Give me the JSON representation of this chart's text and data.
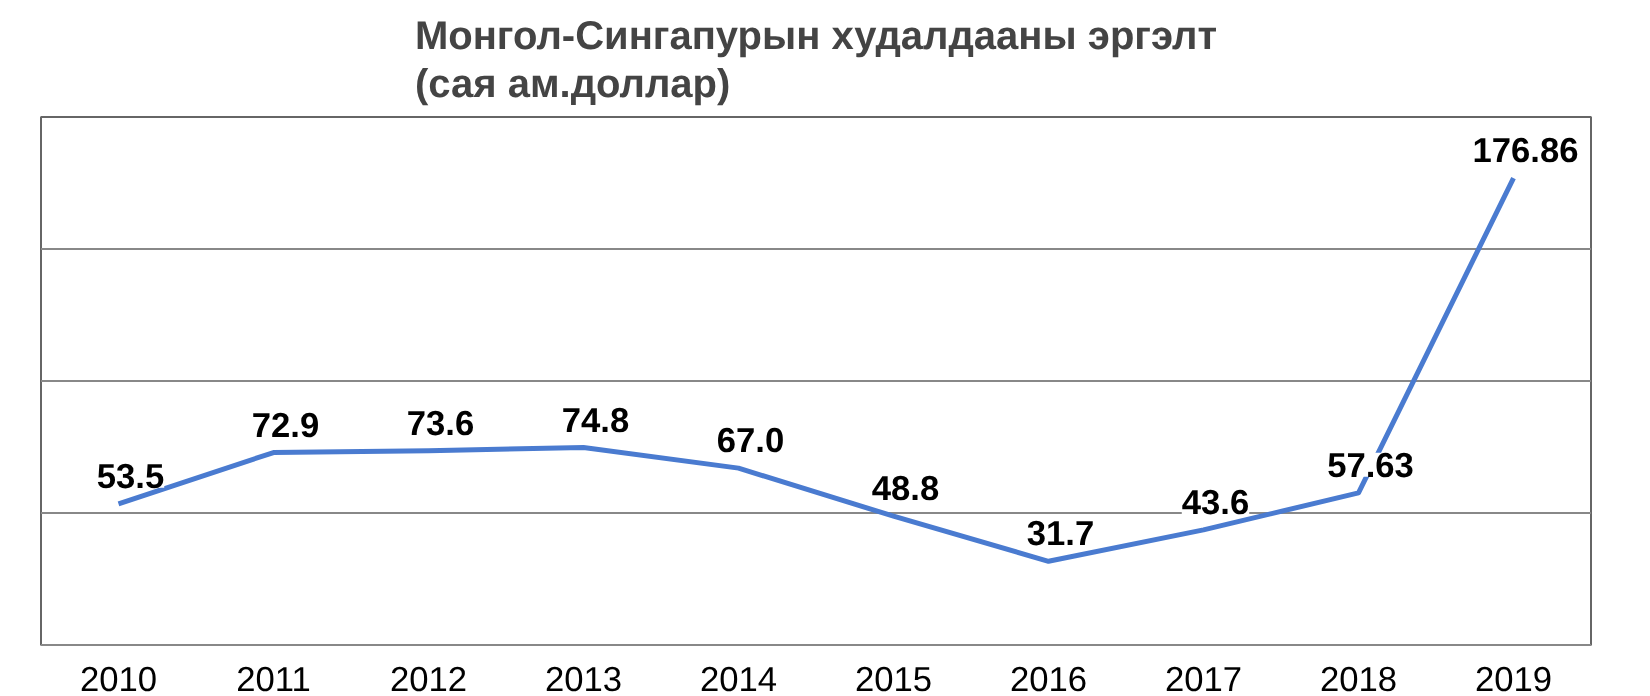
{
  "chart_data": {
    "type": "line",
    "title": "Монгол-Сингапурын худалдааны эргэлт\n(сая ам.доллар)",
    "categories": [
      "2010",
      "2011",
      "2012",
      "2013",
      "2014",
      "2015",
      "2016",
      "2017",
      "2018",
      "2019"
    ],
    "series": [
      {
        "color": "#4a7bd0",
        "values": [
          53.5,
          72.9,
          73.6,
          74.8,
          67.0,
          48.8,
          31.7,
          43.6,
          57.63,
          176.86
        ],
        "value_labels": [
          "53.5",
          "72.9",
          "73.6",
          "74.8",
          "67.0",
          "48.8",
          "31.7",
          "43.6",
          "57.63",
          "176.86"
        ]
      }
    ],
    "ylim": [
      0,
      200
    ],
    "yticks": [
      {
        "value": 0,
        "label": null
      },
      {
        "value": 50,
        "label": null
      },
      {
        "value": 100,
        "label": null
      },
      {
        "value": 150,
        "label": null
      },
      {
        "value": 200,
        "label": null
      }
    ],
    "grid": "y",
    "tick_labels": "x",
    "marker": "none",
    "line_style": "solid"
  }
}
